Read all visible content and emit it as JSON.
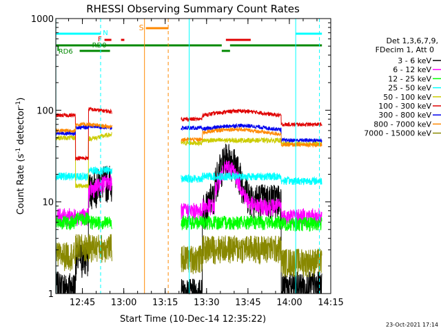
{
  "chart_data": {
    "type": "line",
    "title": "RHESSI Observing Summary Count Rates",
    "xlabel": "Start Time (10-Dec-14 12:35:22)",
    "ylabel": "Count Rate (s⁻¹ detector⁻¹)",
    "ylabel_parts": {
      "prefix": "Count Rate (s",
      "exp1": "-1",
      "mid": " detector",
      "exp2": "-1",
      "suffix": ")"
    },
    "y_scale": "log",
    "ylim": [
      1,
      1000
    ],
    "xlim": [
      "12:35:22",
      "14:15:00"
    ],
    "x_ticks": [
      "12:45",
      "13:00",
      "13:15",
      "13:30",
      "13:45",
      "14:00",
      "14:15"
    ],
    "y_ticks": [
      "1",
      "10",
      "100",
      "1000"
    ],
    "legend_title": [
      "Det 1,3,6,7,9,",
      "FDecim 1, Att 0"
    ],
    "legend_placement": "right",
    "timestamp": "23-Oct-2021 17:14",
    "flag_labels": {
      "saa": "S",
      "night": "N",
      "flare": "F",
      "rd0": "RD0",
      "rd6": "RD6"
    },
    "series": [
      {
        "name": "3 - 6 keV",
        "color": "#000000"
      },
      {
        "name": "6 - 12 keV",
        "color": "#ff00ff"
      },
      {
        "name": "12 - 25 keV",
        "color": "#00ff00"
      },
      {
        "name": "25 - 50 keV",
        "color": "#00ffff"
      },
      {
        "name": "50 - 100 keV",
        "color": "#cccc00"
      },
      {
        "name": "100 - 300 keV",
        "color": "#e00000"
      },
      {
        "name": "300 - 800 keV",
        "color": "#0000ee"
      },
      {
        "name": "800 - 7000 keV",
        "color": "#ff8800"
      },
      {
        "name": "7000 - 15000 keV",
        "color": "#888800"
      }
    ]
  }
}
